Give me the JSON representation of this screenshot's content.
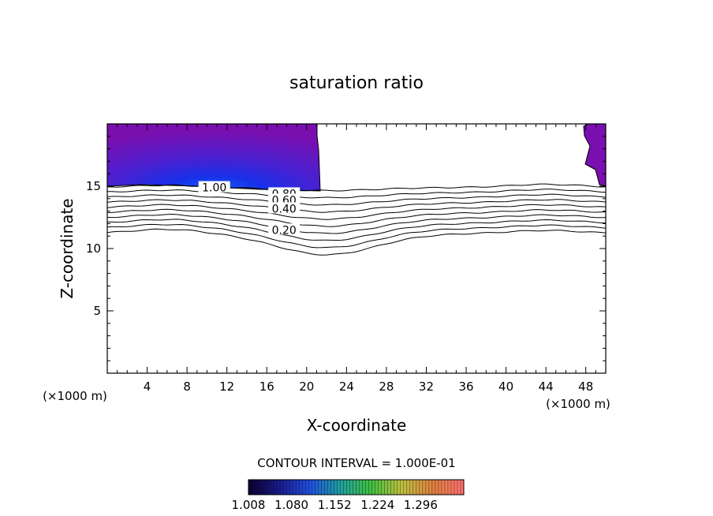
{
  "chart_data": {
    "type": "contour",
    "title": "saturation ratio",
    "xlabel": "X-coordinate",
    "ylabel": "Z-coordinate",
    "x_units": "(×1000 m)",
    "y_units": "(×1000 m)",
    "xlim": [
      0,
      50
    ],
    "ylim": [
      0,
      20
    ],
    "x_ticks": [
      4,
      8,
      12,
      16,
      20,
      24,
      28,
      32,
      36,
      40,
      44,
      48
    ],
    "y_ticks": [
      5,
      10,
      15
    ],
    "contour_interval_text": "CONTOUR INTERVAL = 1.000E-01",
    "contour_levels": [
      0.1,
      0.2,
      0.3,
      0.4,
      0.5,
      0.6,
      0.7,
      0.8,
      0.9,
      1.0
    ],
    "contour_labels": [
      {
        "text": "1.00",
        "x": 10.5,
        "z": 14.9
      },
      {
        "text": "0.80",
        "x": 17.5,
        "z": 14.4
      },
      {
        "text": "0.60",
        "x": 17.5,
        "z": 13.9
      },
      {
        "text": "0.40",
        "x": 17.5,
        "z": 13.2
      },
      {
        "text": "0.20",
        "x": 17.5,
        "z": 11.5
      }
    ],
    "supersaturated_regions": [
      {
        "name": "left",
        "x_range": [
          0,
          21.5
        ],
        "z_range": [
          14.9,
          20
        ]
      },
      {
        "name": "right",
        "x_range": [
          47,
          50
        ],
        "z_range": [
          14.9,
          20
        ]
      }
    ],
    "colorbar": {
      "min": 1.008,
      "max": 1.368,
      "tick_labels": [
        "1.008",
        "1.080",
        "1.152",
        "1.224",
        "1.296"
      ],
      "colors": [
        "#0a0030",
        "#1a1a8c",
        "#2050e0",
        "#20a0a0",
        "#40c040",
        "#c0c040",
        "#e08040",
        "#ff7070"
      ]
    },
    "fill_colors": {
      "outer": "#7a0fb0",
      "core": "#1830e8"
    }
  }
}
